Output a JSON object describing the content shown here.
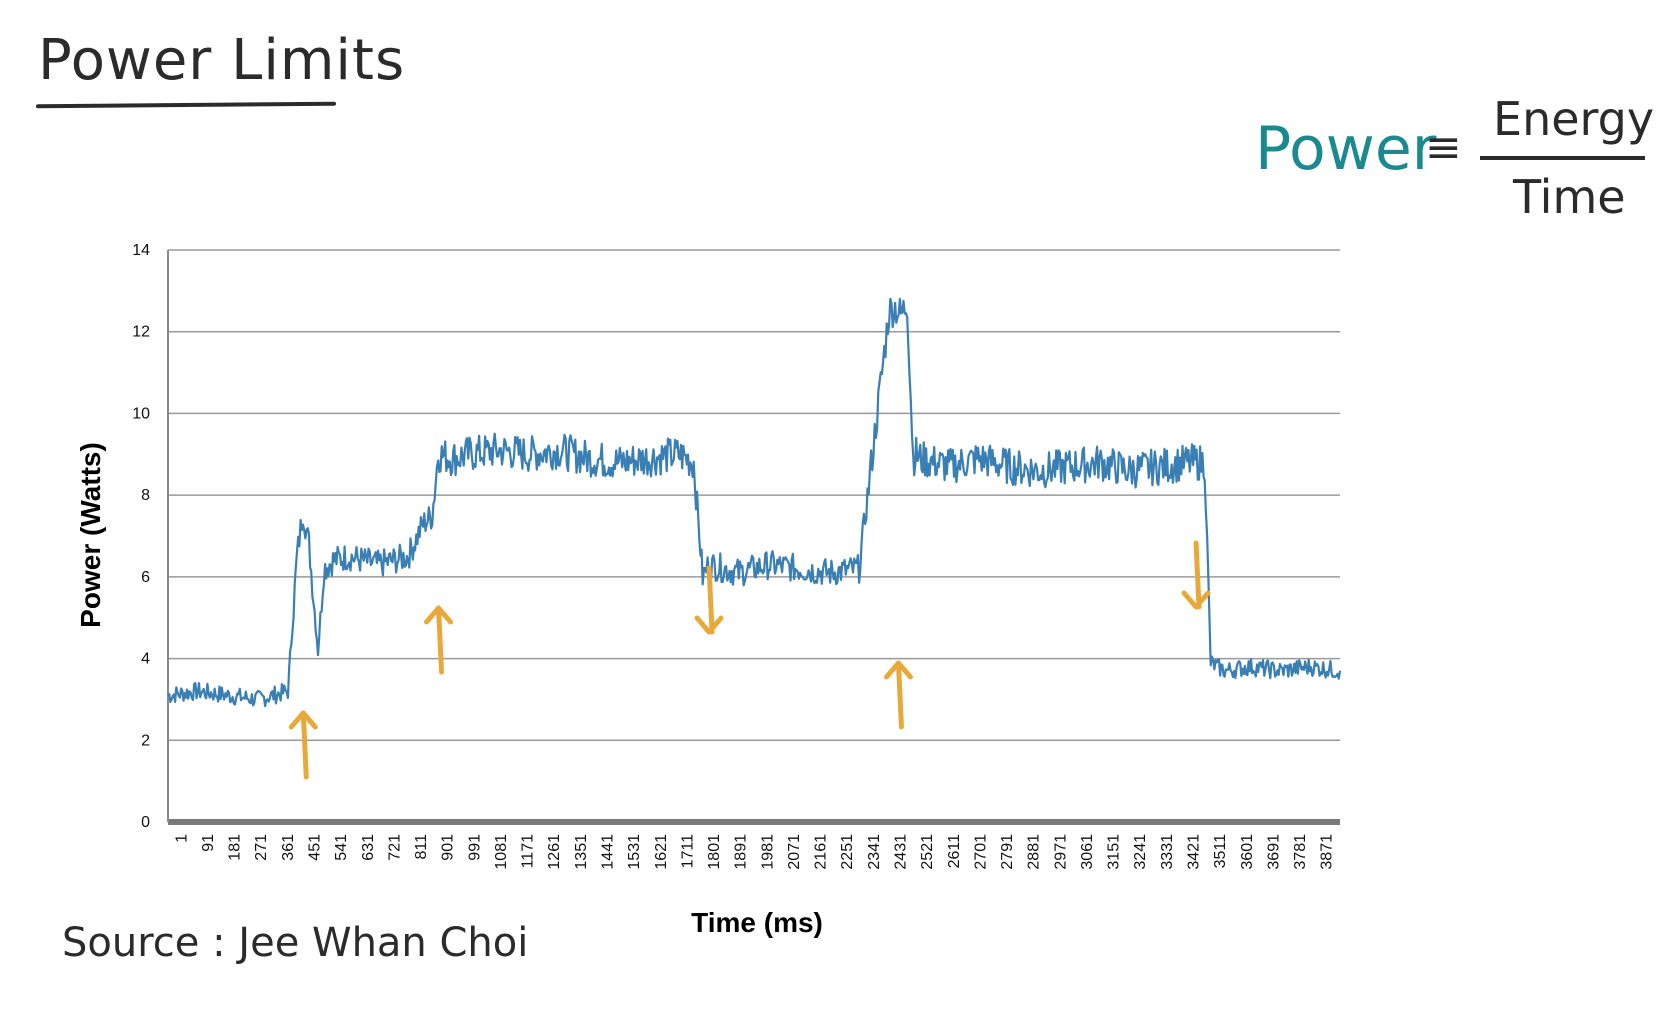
{
  "page": {
    "title": "Power Limits",
    "formula": {
      "lhs": "Power",
      "eq": "≡",
      "numerator": "Energy",
      "denominator": "Time"
    },
    "source": "Source : Jee Whan Choi",
    "colors": {
      "series": "#3a7fb3",
      "arrow": "#e8a93a",
      "formula_lhs": "#1a8a8f",
      "ink": "#2b2b2b",
      "grid": "#9a9a9a"
    }
  },
  "chart_data": {
    "type": "line",
    "xlabel": "Time (ms)",
    "ylabel": "Power (Watts)",
    "ylim": [
      0,
      14
    ],
    "yticks": [
      0,
      2,
      4,
      6,
      8,
      10,
      12,
      14
    ],
    "xticks": [
      "1",
      "91",
      "181",
      "271",
      "361",
      "451",
      "541",
      "631",
      "721",
      "811",
      "901",
      "991",
      "1081",
      "1171",
      "1261",
      "1351",
      "1441",
      "1531",
      "1621",
      "1711",
      "1801",
      "1891",
      "1981",
      "2071",
      "2161",
      "2251",
      "2341",
      "2431",
      "2521",
      "2611",
      "2701",
      "2791",
      "2881",
      "2971",
      "3061",
      "3151",
      "3241",
      "3331",
      "3421",
      "3511",
      "3601",
      "3691",
      "3781",
      "3871"
    ],
    "xrange": [
      1,
      3900
    ],
    "grid": true,
    "series": [
      {
        "x": [
          1,
          100,
          200,
          300,
          400,
          430,
          450,
          470,
          500,
          520,
          550,
          600,
          700,
          800,
          850,
          880,
          900,
          950,
          1000,
          1100,
          1200,
          1300,
          1400,
          1500,
          1600,
          1700,
          1750,
          1780,
          1800,
          1850,
          1900,
          2000,
          2100,
          2200,
          2300,
          2400,
          2420,
          2440,
          2460,
          2480,
          2490,
          2500,
          2550,
          2600,
          2700,
          2800,
          2900,
          3000,
          3100,
          3200,
          3300,
          3400,
          3450,
          3470,
          3490,
          3520,
          3600,
          3700,
          3800,
          3900
        ],
        "y": [
          3.1,
          3.2,
          3.1,
          3.0,
          3.2,
          6.5,
          7.6,
          6.8,
          4.2,
          6.2,
          6.4,
          6.5,
          6.3,
          6.5,
          7.3,
          7.5,
          9.0,
          8.9,
          9.0,
          9.1,
          9.0,
          9.1,
          8.9,
          8.8,
          8.9,
          9.0,
          8.8,
          6.0,
          6.3,
          6.2,
          6.1,
          6.3,
          6.2,
          6.1,
          6.2,
          12.5,
          12.6,
          12.4,
          12.7,
          8.9,
          9.0,
          8.9,
          8.8,
          8.7,
          8.9,
          8.7,
          8.6,
          8.7,
          8.8,
          8.6,
          8.7,
          8.8,
          8.8,
          3.9,
          3.8,
          3.7,
          3.8,
          3.7,
          3.8,
          3.7
        ]
      }
    ],
    "annotations": [
      {
        "type": "arrow",
        "direction": "up",
        "x": 451
      },
      {
        "type": "arrow",
        "direction": "up",
        "x": 901
      },
      {
        "type": "arrow",
        "direction": "down",
        "x": 1801
      },
      {
        "type": "arrow",
        "direction": "up",
        "x": 2431
      },
      {
        "type": "arrow",
        "direction": "down",
        "x": 3421
      }
    ]
  }
}
